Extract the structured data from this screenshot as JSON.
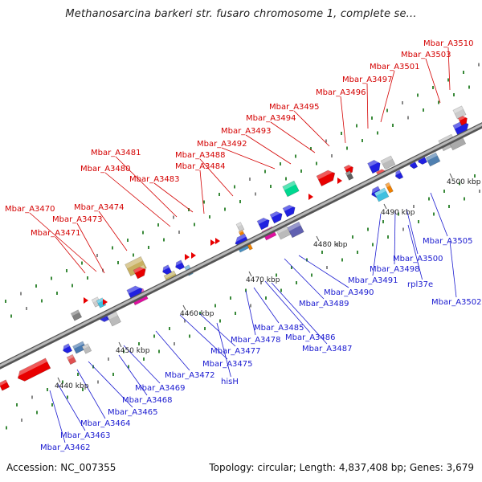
{
  "title": "Methanosarcina barkeri str. fusaro chromosome 1, complete se...",
  "footer": {
    "accession": "Accession: NC_007355",
    "stats": "Topology: circular; Length: 4,837,408 bp; Genes: 3,679"
  },
  "colors": {
    "top_label": "#d40000",
    "bottom_label": "#1a1ad0",
    "backbone": "#8c8c8c",
    "tick": "#3a8a3a"
  },
  "ticks": [
    "4440 kbp",
    "4450 kbp",
    "4460 kbp",
    "4470 kbp",
    "4480 kbp",
    "4490 kbp",
    "4500 kbp"
  ],
  "top_labels": [
    "Mbar_A3510",
    "Mbar_A3503",
    "Mbar_A3501",
    "Mbar_A3497",
    "Mbar_A3496",
    "Mbar_A3495",
    "Mbar_A3494",
    "Mbar_A3493",
    "Mbar_A3492",
    "Mbar_A3488",
    "Mbar_A3484",
    "Mbar_A3481",
    "Mbar_A3480",
    "Mbar_A3483",
    "Mbar_A3470",
    "Mbar_A3474",
    "Mbar_A3473",
    "Mbar_A3471"
  ],
  "bottom_labels": [
    "Mbar_A3505",
    "Mbar_A3500",
    "Mbar_A3498",
    "Mbar_A3491",
    "rpl37e",
    "Mbar_A3502",
    "Mbar_A3490",
    "Mbar_A3489",
    "Mbar_A3485",
    "Mbar_A3478",
    "Mbar_A3486",
    "Mbar_A3487",
    "Mbar_A3477",
    "Mbar_A3475",
    "Mbar_A3472",
    "hisH",
    "Mbar_A3469",
    "Mbar_A3468",
    "Mbar_A3465",
    "Mbar_A3464",
    "Mbar_A3463",
    "Mbar_A3462"
  ]
}
